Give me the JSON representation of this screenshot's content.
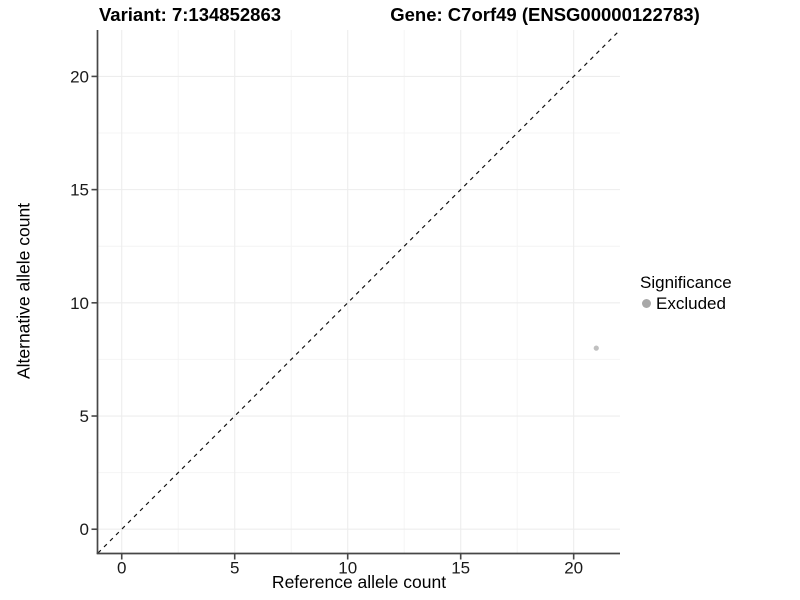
{
  "header": {
    "variant_title": "Variant: 7:134852863",
    "gene_title": "Gene: C7orf49 (ENSG00000122783)"
  },
  "legend": {
    "title": "Significance",
    "items": [
      {
        "label": "Excluded",
        "marker": "circle-icon",
        "color": "#a8a8a8"
      }
    ]
  },
  "colors": {
    "background": "#ffffff",
    "axis": "#474747",
    "grid_major": "#ededed",
    "grid_minor": "#f4f4f4",
    "identity_line": "#141414",
    "point": "#c0c0c0",
    "legend_point": "#a8a8a8",
    "tick_text": "#1a1a1a"
  },
  "chart_data": {
    "type": "scatter",
    "title": "",
    "xlabel": "Reference allele count",
    "ylabel": "Alternative allele count",
    "xlim": [
      -1.05,
      22.05
    ],
    "ylim": [
      -1.05,
      22.05
    ],
    "x_ticks": [
      0,
      5,
      10,
      15,
      20
    ],
    "x_tick_labels": [
      "0",
      "5",
      "10",
      "15",
      "20"
    ],
    "y_ticks": [
      0,
      5,
      10,
      15,
      20
    ],
    "y_tick_labels": [
      "0",
      "5",
      "10",
      "15",
      "20"
    ],
    "x_minor_ticks": [
      2.5,
      7.5,
      12.5,
      17.5
    ],
    "y_minor_ticks": [
      2.5,
      7.5,
      12.5,
      17.5
    ],
    "grid": "major+minor",
    "legend_position": "right",
    "series": [
      {
        "name": "Excluded",
        "points": [
          {
            "x": 21,
            "y": 8
          }
        ]
      }
    ],
    "identity_line": {
      "slope": 1,
      "intercept": 0,
      "style": "dashed"
    }
  }
}
